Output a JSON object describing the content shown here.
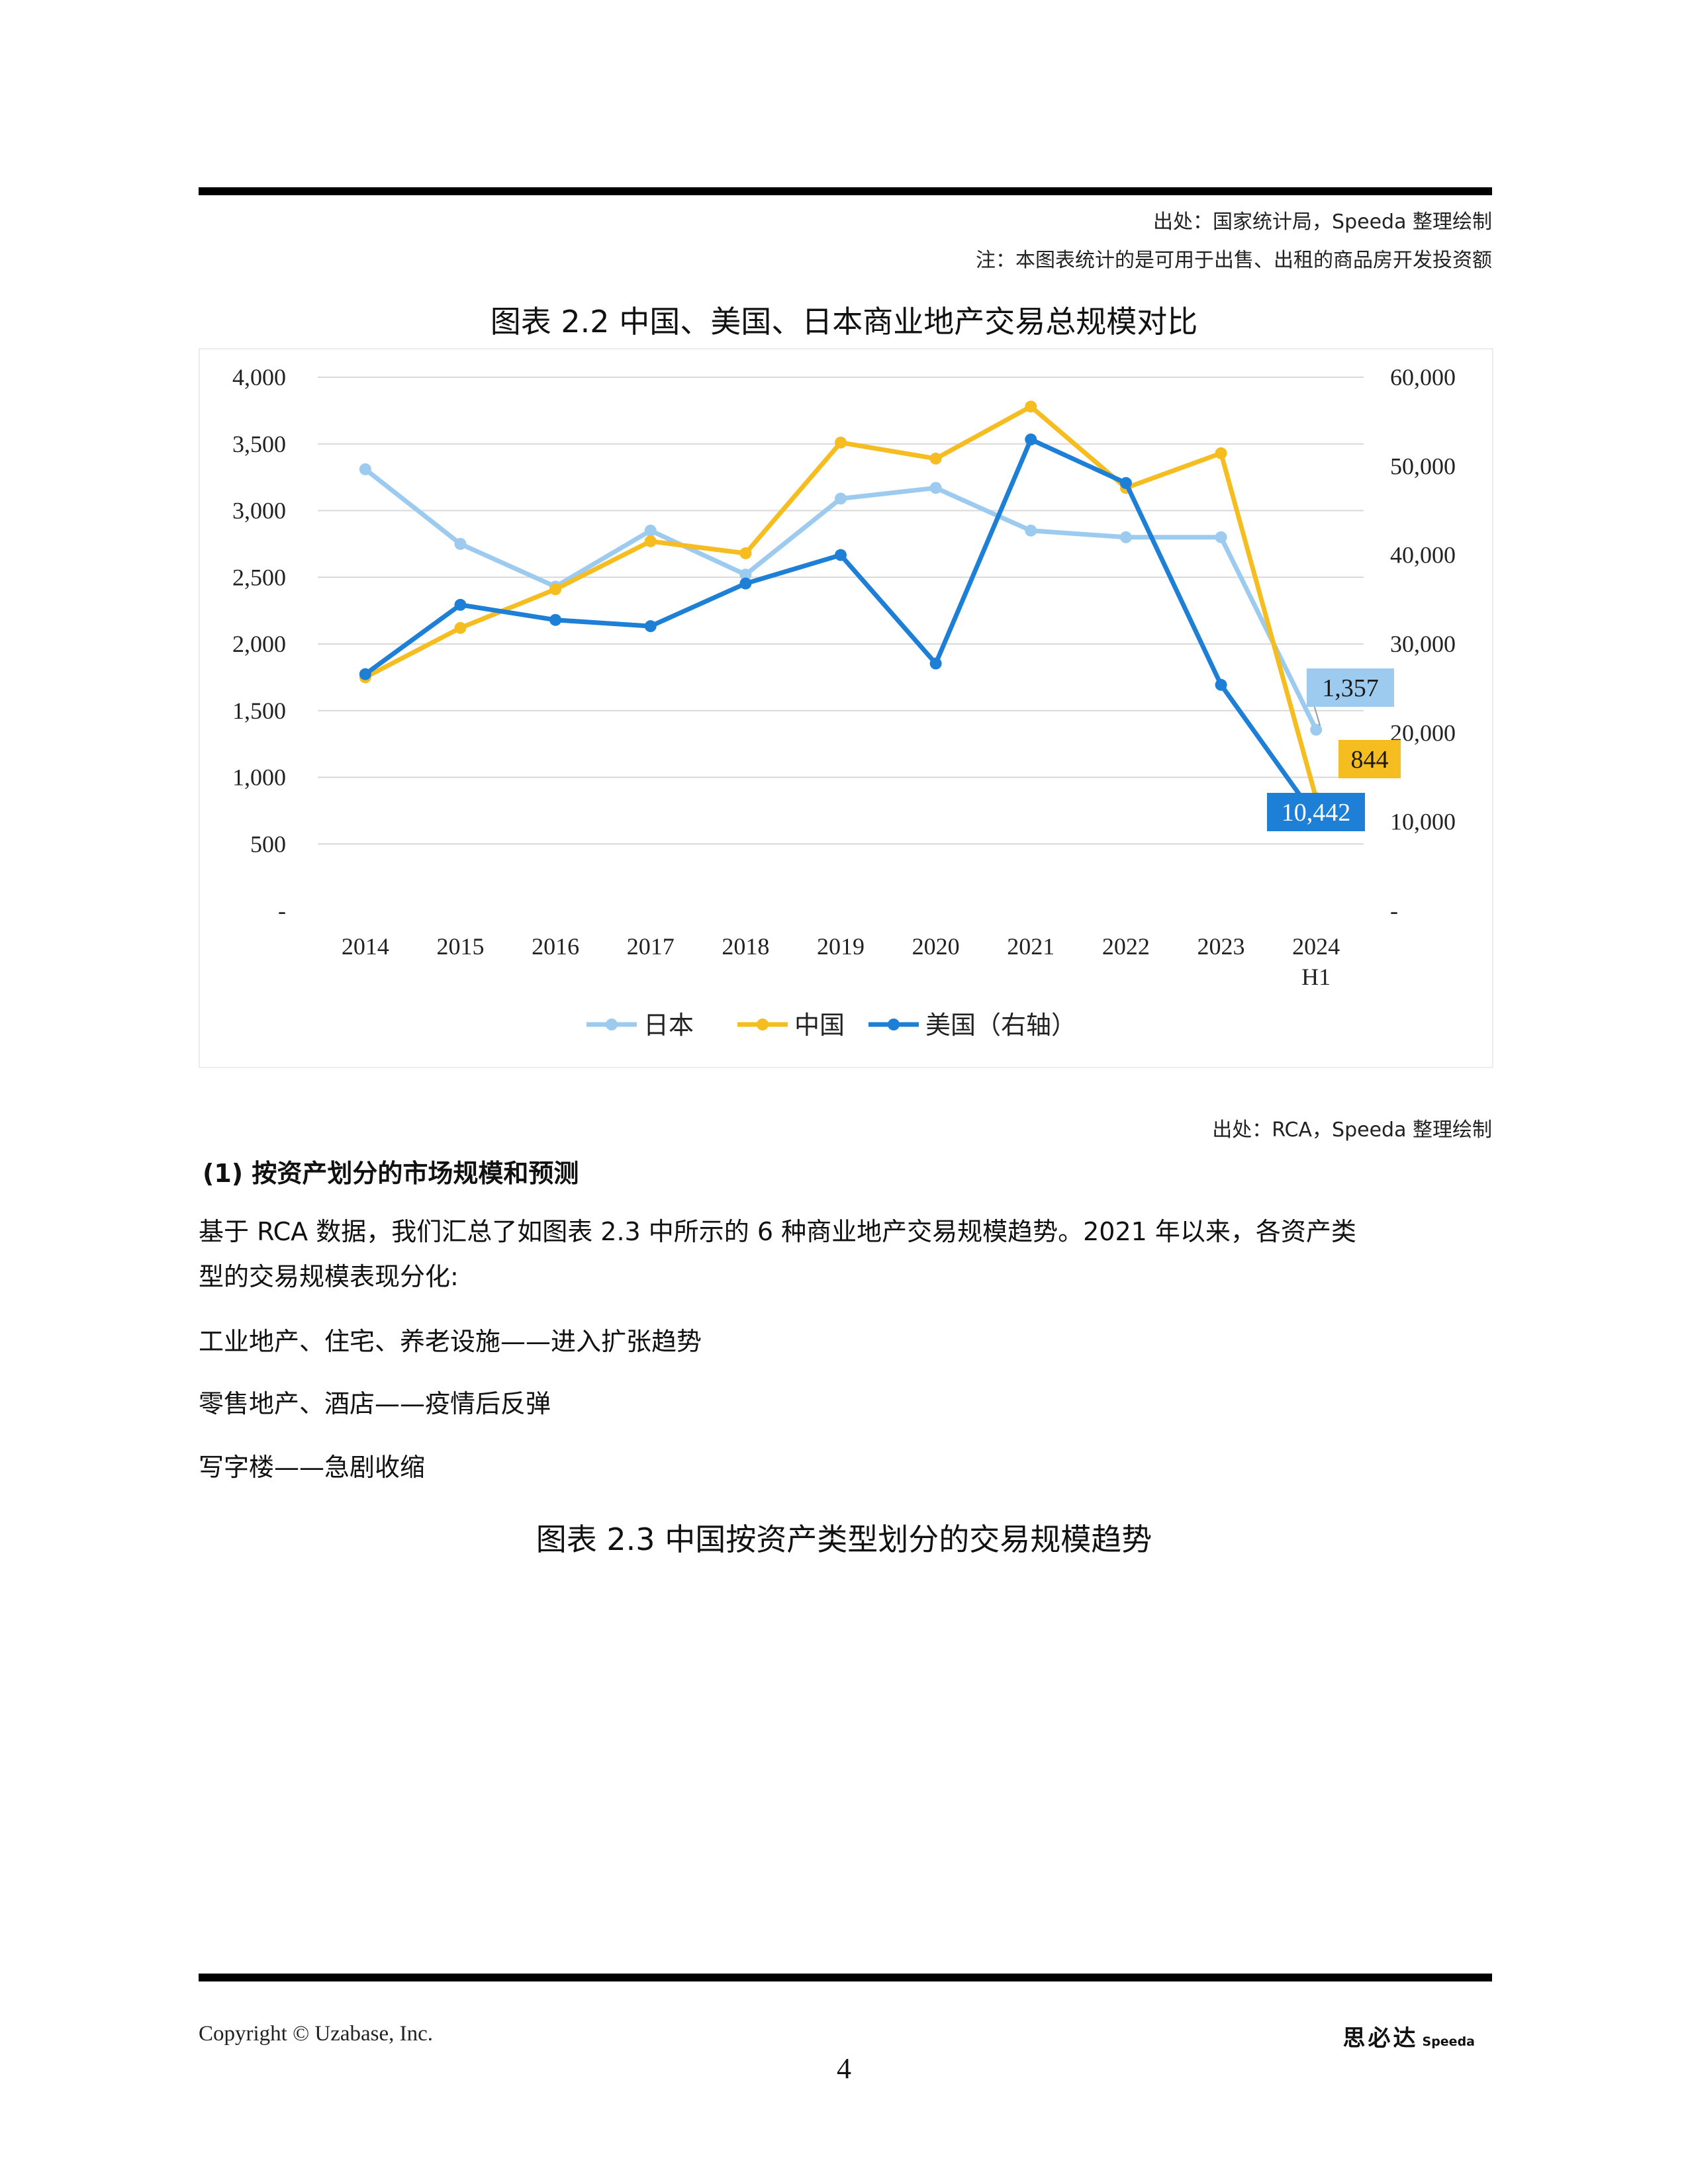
{
  "header": {
    "source_note": "出处：国家统计局，Speeda 整理绘制",
    "note": "注：本图表统计的是可用于出售、出租的商品房开发投资额"
  },
  "figure_2_2": {
    "title": "图表 2.2 中国、美国、日本商业地产交易总规模对比",
    "source": "出处：RCA，Speeda 整理绘制"
  },
  "chart_data": {
    "type": "line",
    "title": "图表 2.2 中国、美国、日本商业地产交易总规模对比",
    "categories": [
      "2014",
      "2015",
      "2016",
      "2017",
      "2018",
      "2019",
      "2020",
      "2021",
      "2022",
      "2023",
      "2024 H1"
    ],
    "category_lines": [
      [
        "2014"
      ],
      [
        "2015"
      ],
      [
        "2016"
      ],
      [
        "2017"
      ],
      [
        "2018"
      ],
      [
        "2019"
      ],
      [
        "2020"
      ],
      [
        "2021"
      ],
      [
        "2022"
      ],
      [
        "2023"
      ],
      [
        "2024",
        "H1"
      ]
    ],
    "left_axis": {
      "ylim": [
        0,
        4000
      ],
      "ticks": [
        0,
        500,
        1000,
        1500,
        2000,
        2500,
        3000,
        3500,
        4000
      ],
      "tick_labels": [
        "-",
        "500",
        "1,000",
        "1,500",
        "2,000",
        "2,500",
        "3,000",
        "3,500",
        "4,000"
      ]
    },
    "right_axis": {
      "ylim": [
        0,
        60000
      ],
      "ticks": [
        0,
        10000,
        20000,
        30000,
        40000,
        50000,
        60000
      ],
      "tick_labels": [
        "-",
        "10,000",
        "20,000",
        "30,000",
        "40,000",
        "50,000",
        "60,000"
      ]
    },
    "grid": true,
    "legend_position": "bottom",
    "series": [
      {
        "name": "日本",
        "axis": "left",
        "color": "#9dcbf0",
        "values": [
          3310,
          2750,
          2430,
          2850,
          2520,
          3090,
          3170,
          2850,
          2800,
          2800,
          1357
        ],
        "last_label": "1,357",
        "label_bg": "#9dcbf0",
        "label_color": "#1a1a1a"
      },
      {
        "name": "中国",
        "axis": "left",
        "color": "#f5bd1f",
        "values": [
          1750,
          2120,
          2410,
          2770,
          2680,
          3510,
          3390,
          3780,
          3170,
          3430,
          844
        ],
        "last_label": "844",
        "label_bg": "#f5bd1f",
        "label_color": "#1a1a1a"
      },
      {
        "name": "美国（右轴）",
        "axis": "right",
        "color": "#1e7fd6",
        "values": [
          26600,
          34400,
          32700,
          32000,
          36800,
          40000,
          27800,
          53000,
          48100,
          25400,
          10442
        ],
        "last_label": "10,442",
        "label_bg": "#1e7fd6",
        "label_color": "#ffffff"
      }
    ]
  },
  "section": {
    "title": "(1) 按资产划分的市场规模和预测",
    "para1_line1": "基于 RCA 数据，我们汇总了如图表 2.3 中所示的 6 种商业地产交易规模趋势。2021 年以来，各资产类",
    "para1_line2": "型的交易规模表现分化:",
    "item1": "工业地产、住宅、养老设施——进入扩张趋势",
    "item2": "零售地产、酒店——疫情后反弹",
    "item3": "写字楼——急剧收缩"
  },
  "figure_2_3": {
    "title": "图表 2.3 中国按资产类型划分的交易规模趋势"
  },
  "footer": {
    "copyright": "Copyright © Uzabase, Inc.",
    "page_number": "4",
    "brand_cn": "思必达",
    "brand_en": "Speeda"
  }
}
